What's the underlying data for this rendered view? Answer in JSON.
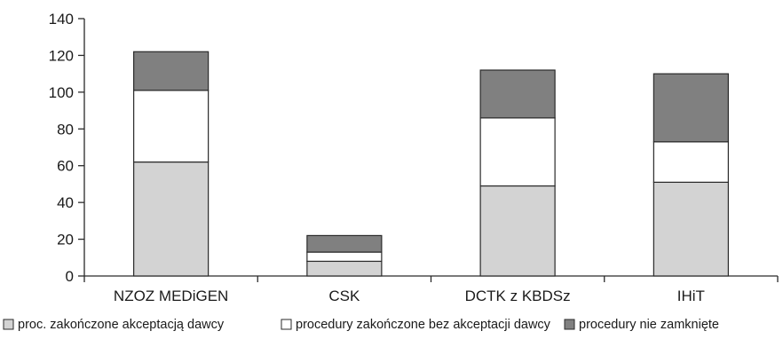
{
  "chart_data": {
    "type": "bar",
    "stacked": true,
    "categories": [
      "NZOZ MEDiGEN",
      "CSK",
      "DCTK z KBDSz",
      "IHiT"
    ],
    "series": [
      {
        "name": "proc. zakończone akceptacją dawcy",
        "values": [
          62,
          8,
          49,
          51
        ],
        "color": "#d3d3d3"
      },
      {
        "name": "procedury zakończone bez akceptacji dawcy",
        "values": [
          39,
          5,
          37,
          22
        ],
        "color": "#ffffff"
      },
      {
        "name": "procedury nie zamknięte",
        "values": [
          21,
          9,
          26,
          37
        ],
        "color": "#808080"
      }
    ],
    "ylim": [
      0,
      140
    ],
    "yticks": [
      "0",
      "20",
      "40",
      "60",
      "80",
      "100",
      "120",
      "140"
    ],
    "grid": false,
    "legend": "bottom"
  }
}
